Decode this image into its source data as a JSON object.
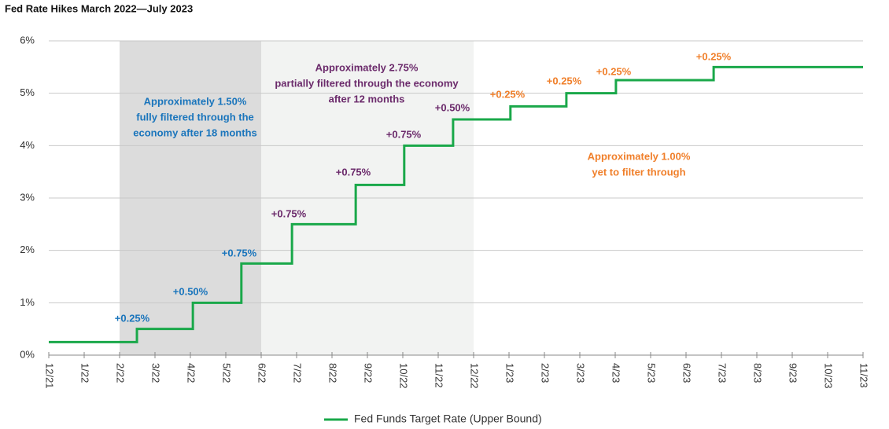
{
  "chart_data": {
    "type": "step-line",
    "title": "Fed Rate Hikes March 2022—July 2023",
    "xlim": [
      0,
      23
    ],
    "xticks": [
      {
        "value": 0,
        "label": "12/21"
      },
      {
        "value": 1,
        "label": "1/22"
      },
      {
        "value": 2,
        "label": "2/22"
      },
      {
        "value": 3,
        "label": "3/22"
      },
      {
        "value": 4,
        "label": "4/22"
      },
      {
        "value": 5,
        "label": "5/22"
      },
      {
        "value": 6,
        "label": "6/22"
      },
      {
        "value": 7,
        "label": "7/22"
      },
      {
        "value": 8,
        "label": "8/22"
      },
      {
        "value": 9,
        "label": "9/22"
      },
      {
        "value": 10,
        "label": "10/22"
      },
      {
        "value": 11,
        "label": "11/22"
      },
      {
        "value": 12,
        "label": "12/22"
      },
      {
        "value": 13,
        "label": "1/23"
      },
      {
        "value": 14,
        "label": "2/23"
      },
      {
        "value": 15,
        "label": "3/23"
      },
      {
        "value": 16,
        "label": "4/23"
      },
      {
        "value": 17,
        "label": "5/23"
      },
      {
        "value": 18,
        "label": "6/23"
      },
      {
        "value": 19,
        "label": "7/23"
      },
      {
        "value": 20,
        "label": "8/23"
      },
      {
        "value": 21,
        "label": "9/23"
      },
      {
        "value": 22,
        "label": "10/23"
      },
      {
        "value": 23,
        "label": "11/23"
      }
    ],
    "ylim": [
      0,
      6
    ],
    "yticks": [
      {
        "value": 0,
        "label": "0%"
      },
      {
        "value": 1,
        "label": "1%"
      },
      {
        "value": 2,
        "label": "2%"
      },
      {
        "value": 3,
        "label": "3%"
      },
      {
        "value": 4,
        "label": "4%"
      },
      {
        "value": 5,
        "label": "5%"
      },
      {
        "value": 6,
        "label": "6%"
      }
    ],
    "grid": true,
    "legend": "bottom",
    "shaded_regions": [
      {
        "from": 2,
        "to": 6,
        "color": "#dcdcdc"
      },
      {
        "from": 6,
        "to": 12,
        "color": "#f2f3f2"
      }
    ],
    "series": [
      {
        "name": "Fed Funds Target Rate (Upper Bound)",
        "color": "#1aa84a",
        "x": [
          0,
          2.49,
          2.49,
          4.07,
          4.07,
          5.44,
          5.44,
          6.87,
          6.87,
          8.67,
          8.67,
          10.04,
          10.04,
          11.42,
          11.42,
          13.04,
          13.04,
          14.62,
          14.62,
          16.02,
          16.02,
          18.78,
          18.78,
          23
        ],
        "values": [
          0.25,
          0.25,
          0.5,
          0.5,
          1,
          1,
          1.75,
          1.75,
          2.5,
          2.5,
          3.25,
          3.25,
          4,
          4,
          4.5,
          4.5,
          4.75,
          4.75,
          5,
          5,
          5.25,
          5.25,
          5.5,
          5.5
        ]
      }
    ],
    "annotations": [
      {
        "lines": [
          "+0.25%"
        ],
        "color": "#1a75bc"
      },
      {
        "lines": [
          "+0.50%"
        ],
        "color": "#1a75bc"
      },
      {
        "lines": [
          "+0.75%"
        ],
        "color": "#1a75bc"
      },
      {
        "lines": [
          "+0.75%"
        ],
        "color": "#6b2a6b"
      },
      {
        "lines": [
          "+0.75%"
        ],
        "color": "#6b2a6b"
      },
      {
        "lines": [
          "+0.75%"
        ],
        "color": "#6b2a6b"
      },
      {
        "lines": [
          "+0.50%"
        ],
        "color": "#6b2a6b"
      },
      {
        "lines": [
          "+0.25%"
        ],
        "color": "#f07f2a"
      },
      {
        "lines": [
          "+0.25%"
        ],
        "color": "#f07f2a"
      },
      {
        "lines": [
          "+0.25%"
        ],
        "color": "#f07f2a"
      },
      {
        "lines": [
          "+0.25%"
        ],
        "color": "#f07f2a"
      },
      {
        "lines": [
          "Approximately 1.50%",
          "fully filtered through the",
          "economy after 18 months"
        ],
        "color": "#1a75bc"
      },
      {
        "lines": [
          "Approximately 2.75%",
          "partially filtered through the economy",
          "after 12 months"
        ],
        "color": "#6b2a6b"
      },
      {
        "lines": [
          "Approximately 1.00%",
          "yet to filter through"
        ],
        "color": "#f07f2a"
      }
    ]
  }
}
